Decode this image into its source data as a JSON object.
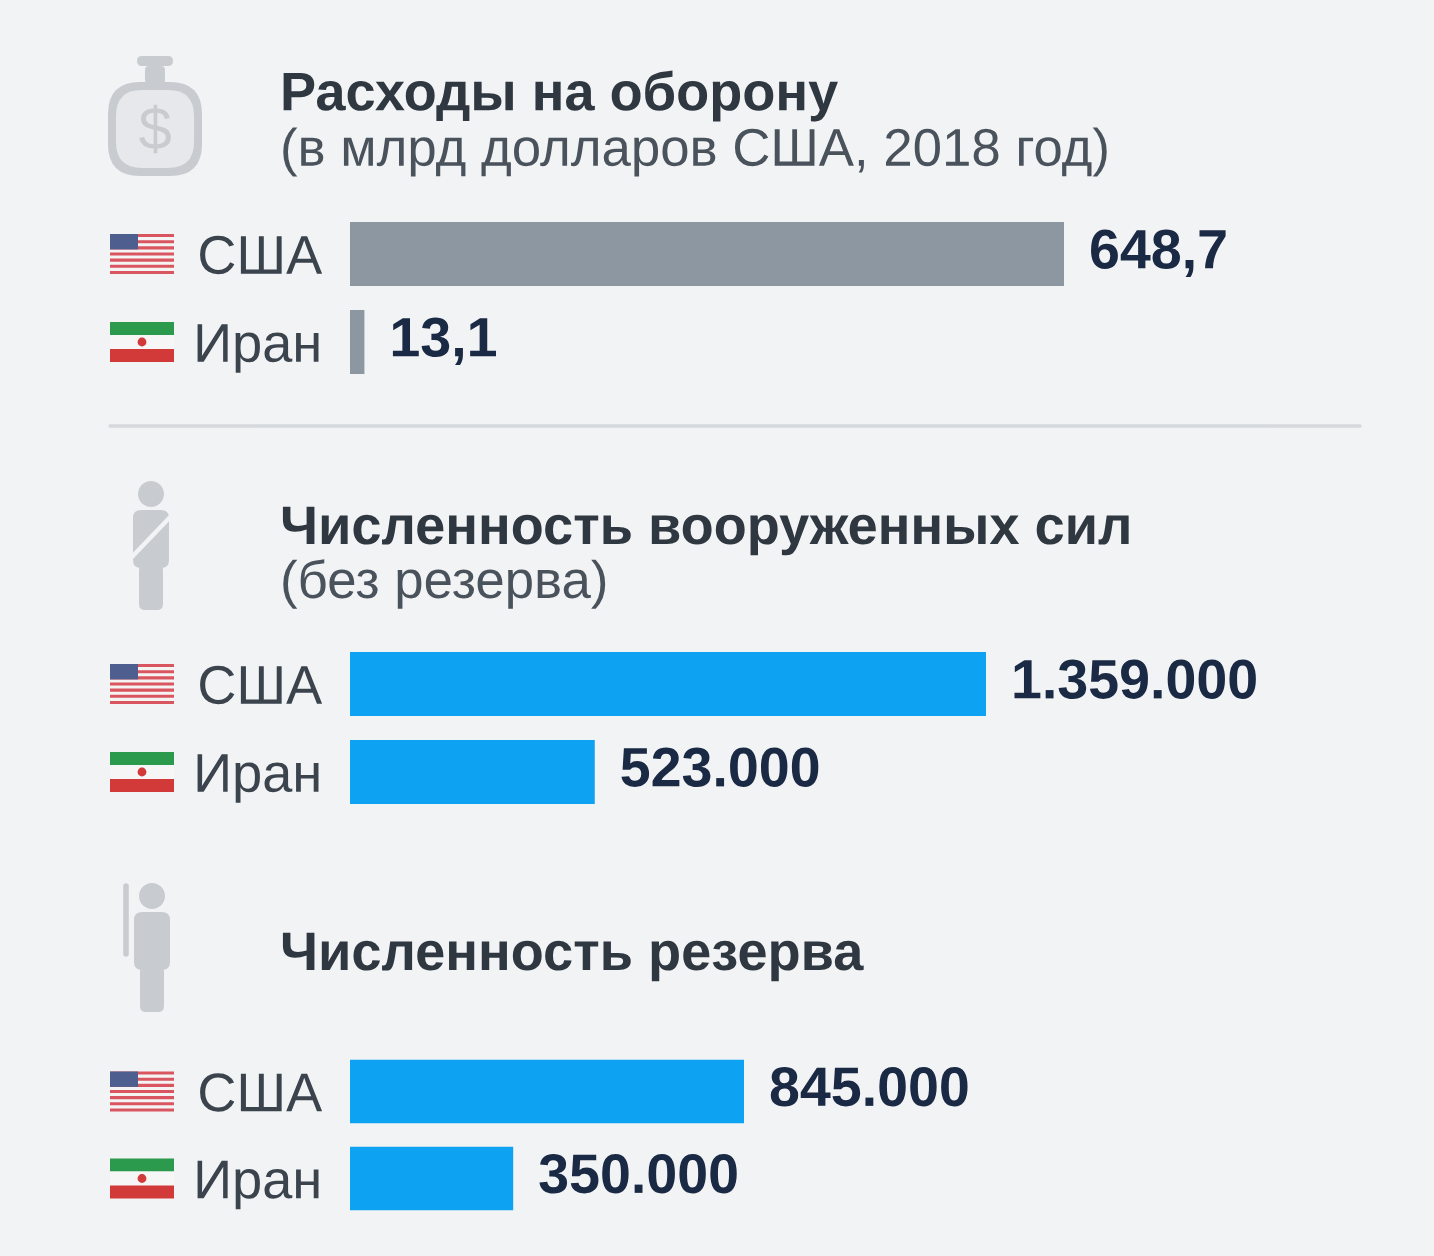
{
  "chart_data": [
    {
      "type": "bar",
      "orientation": "horizontal",
      "title": "Расходы на оборону",
      "subtitle": "(в млрд долларов США, 2018 год)",
      "categories": [
        "США",
        "Иран"
      ],
      "values": [
        648.7,
        13.1
      ],
      "value_labels": [
        "648,7",
        "13,1"
      ],
      "color": "#8d97a2",
      "tick_labels": "y"
    },
    {
      "type": "bar",
      "orientation": "horizontal",
      "title": "Численность вооруженных сил",
      "subtitle": "(без резерва)",
      "categories": [
        "США",
        "Иран"
      ],
      "values": [
        1359000,
        523000
      ],
      "value_labels": [
        "1.359.000",
        "523.000"
      ],
      "color": "#0ea2f3",
      "tick_labels": "y"
    },
    {
      "type": "bar",
      "orientation": "horizontal",
      "title": "Численность резерва",
      "categories": [
        "США",
        "Иран"
      ],
      "values": [
        845000,
        350000
      ],
      "value_labels": [
        "845.000",
        "350.000"
      ],
      "color": "#0ea2f3",
      "tick_labels": "y"
    }
  ]
}
